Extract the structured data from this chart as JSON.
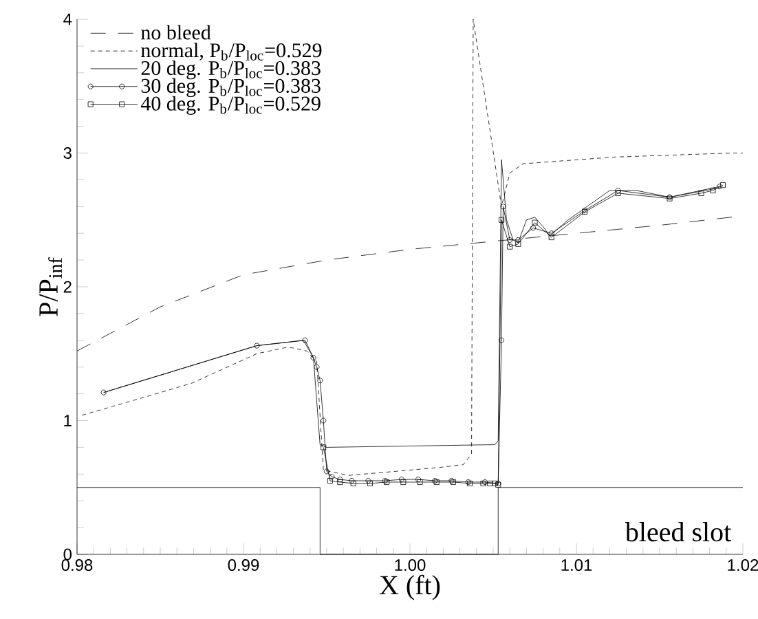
{
  "chart_data": {
    "type": "line",
    "xlabel": "X (ft)",
    "ylabel": "P/P$_{inf}$",
    "xlim": [
      0.98,
      1.02
    ],
    "ylim": [
      0,
      4
    ],
    "xticks": [
      0.98,
      0.99,
      {
        "value": 1.0,
        "label": "1.00"
      },
      1.01,
      1.02
    ],
    "yticks": [
      0,
      1,
      2,
      3,
      4
    ],
    "legend": "top left",
    "annotations": [
      "bleed slot"
    ],
    "series": [
      {
        "name": "no bleed",
        "color": "#000000",
        "line_style": "dashed",
        "marker": "none",
        "x": [
          0.98,
          0.985,
          0.99,
          0.995,
          1.0,
          1.005,
          1.01,
          1.015,
          1.02
        ],
        "values": [
          1.52,
          1.85,
          2.09,
          2.2,
          2.28,
          2.34,
          2.4,
          2.46,
          2.53
        ]
      },
      {
        "name": "normal, P$_{b}$/P$_{loc}$=0.529",
        "color": "#000000",
        "line_style": "dotted",
        "marker": "none",
        "x": [
          0.9803,
          0.9842,
          0.9869,
          0.9908,
          0.9927,
          0.9938,
          0.9944,
          0.9948,
          0.9963,
          0.9991,
          1.0018,
          1.0032,
          1.0037,
          1.0038,
          1.0055,
          1.006,
          1.0068,
          1.0123,
          1.0194,
          1.02
        ],
        "values": [
          1.04,
          1.18,
          1.28,
          1.5,
          1.55,
          1.52,
          1.44,
          0.63,
          0.59,
          0.62,
          0.65,
          0.67,
          0.75,
          4.0,
          2.6,
          2.85,
          2.92,
          2.97,
          3.0,
          3.0
        ]
      },
      {
        "name": "20 deg. P$_{b}$/P$_{loc}$=0.383",
        "color": "#000000",
        "line_style": "solid",
        "marker": "none",
        "x": [
          0.9816,
          0.9908,
          0.9936,
          0.9942,
          0.9946,
          0.995,
          1.0051,
          1.0053,
          1.0055,
          1.0058,
          1.0062,
          1.0065,
          1.007,
          1.0075,
          1.008,
          1.0084,
          1.0095,
          1.0103,
          1.012,
          1.0136,
          1.0156,
          1.0186
        ],
        "values": [
          1.21,
          1.56,
          1.6,
          1.47,
          0.82,
          0.8,
          0.82,
          0.85,
          2.95,
          2.5,
          2.35,
          2.33,
          2.5,
          2.52,
          2.45,
          2.38,
          2.5,
          2.57,
          2.72,
          2.72,
          2.67,
          2.74
        ]
      },
      {
        "name": "30 deg. P$_{b}$/P$_{loc}$=0.383",
        "color": "#000000",
        "line_style": "solid",
        "marker": "circle",
        "x": [
          0.9816,
          0.9908,
          0.9937,
          0.9942,
          0.9944,
          0.9946,
          0.9948,
          0.995,
          0.9953,
          0.9958,
          0.9965,
          0.9975,
          0.9985,
          0.9995,
          1.0005,
          1.0015,
          1.0025,
          1.0035,
          1.0045,
          1.0053,
          1.0055,
          1.0056,
          1.006,
          1.0065,
          1.0074,
          1.0085,
          1.0105,
          1.0125,
          1.0156,
          1.0186
        ],
        "values": [
          1.21,
          1.56,
          1.6,
          1.47,
          1.4,
          1.3,
          1.0,
          0.62,
          0.58,
          0.56,
          0.55,
          0.55,
          0.55,
          0.56,
          0.56,
          0.55,
          0.55,
          0.54,
          0.54,
          0.53,
          1.6,
          2.6,
          2.35,
          2.35,
          2.44,
          2.4,
          2.57,
          2.72,
          2.67,
          2.75
        ]
      },
      {
        "name": "40 deg. P$_{b}$/P$_{loc}$=0.529",
        "color": "#000000",
        "line_style": "solid",
        "marker": "square",
        "x": [
          0.9948,
          0.9952,
          0.9958,
          0.9966,
          0.9976,
          0.9986,
          0.9996,
          1.0006,
          1.0016,
          1.0026,
          1.0036,
          1.0044,
          1.0048,
          1.0051,
          1.0053,
          1.0055,
          1.006,
          1.0065,
          1.0075,
          1.0085,
          1.0105,
          1.0125,
          1.0156,
          1.0175,
          1.0182,
          1.0188
        ],
        "values": [
          0.8,
          0.55,
          0.54,
          0.53,
          0.53,
          0.54,
          0.54,
          0.54,
          0.54,
          0.54,
          0.53,
          0.53,
          0.53,
          0.53,
          0.52,
          2.5,
          2.3,
          2.32,
          2.48,
          2.37,
          2.56,
          2.7,
          2.66,
          2.7,
          2.72,
          2.76
        ]
      },
      {
        "color": "#000000",
        "line_style": "solid",
        "marker": "none",
        "x": [
          0.98,
          0.9946,
          0.9946,
          1.0053,
          1.0053,
          1.02
        ],
        "values": [
          0.5,
          0.5,
          0,
          0,
          0.5,
          0.5
        ]
      }
    ]
  }
}
